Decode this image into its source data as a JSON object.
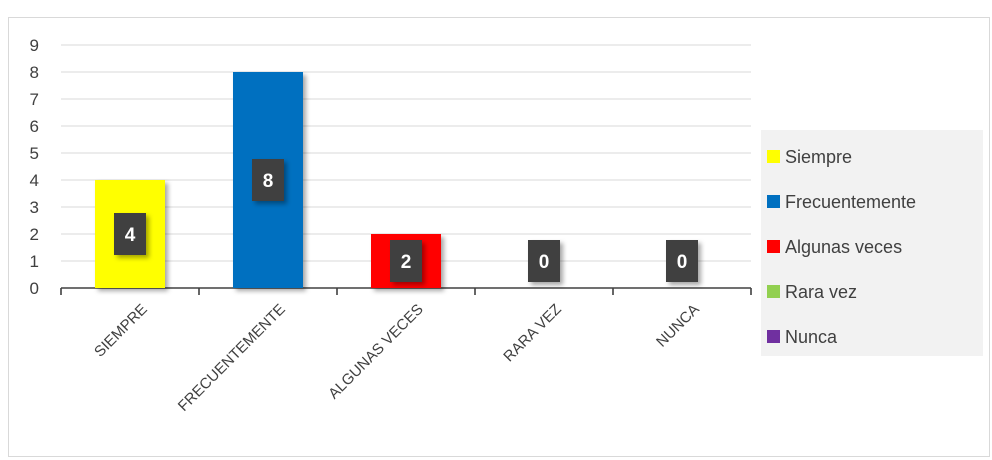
{
  "chart_data": {
    "type": "bar",
    "title": "",
    "xlabel": "",
    "ylabel": "",
    "categories": [
      "SIEMPRE",
      "FRECUENTEMENTE",
      "ALGUNAS VECES",
      "RARA VEZ",
      "NUNCA"
    ],
    "values": [
      4,
      8,
      2,
      0,
      0
    ],
    "colors": [
      "#ffff00",
      "#0070c0",
      "#ff0000",
      "#92d050",
      "#7030a0"
    ],
    "ylim": [
      0,
      9
    ],
    "yticks": [
      "0",
      "1",
      "2",
      "3",
      "4",
      "5",
      "6",
      "7",
      "8",
      "9"
    ],
    "grid": true,
    "legend": {
      "placement": "right",
      "entries": [
        "Siempre",
        "Frecuentemente",
        "Algunas veces",
        "Rara vez",
        "Nunca"
      ]
    },
    "data_labels": [
      "4",
      "8",
      "2",
      "0",
      "0"
    ],
    "data_label_color": "#404040"
  }
}
